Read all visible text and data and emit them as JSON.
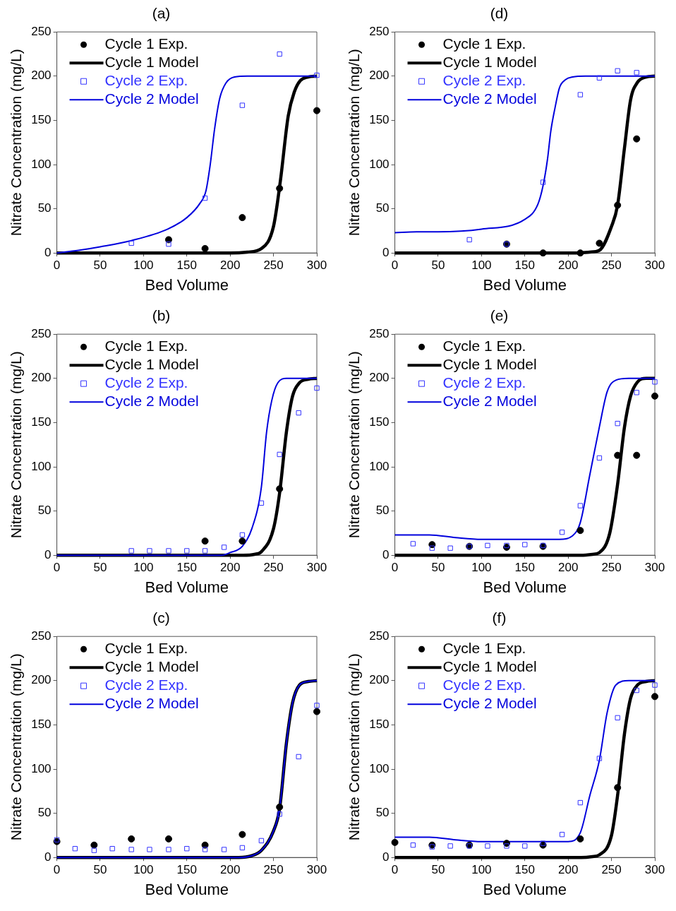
{
  "chart_data": [
    {
      "type": "line",
      "title": "(a)",
      "xlabel": "Bed Volume",
      "ylabel": "Nitrate Concentration (mg/L)",
      "xlim": [
        0,
        300
      ],
      "xticks": [
        0,
        50,
        100,
        150,
        200,
        250,
        300
      ],
      "ylim": [
        0,
        250
      ],
      "yticks": [
        0,
        50,
        100,
        150,
        200,
        250
      ],
      "legend": "top left",
      "line_style": "solid",
      "series": [
        {
          "name": "Cycle 1 Exp.",
          "type": "scatter",
          "marker": "circle",
          "color": "#000000",
          "x": [
            129,
            171,
            214,
            257,
            300
          ],
          "values": [
            15,
            5,
            40,
            73,
            161
          ]
        },
        {
          "name": "Cycle 1 Model",
          "type": "line",
          "marker": "none",
          "color": "#000000",
          "x": [
            0,
            200,
            220,
            236,
            250,
            258,
            267,
            274,
            281,
            290,
            300
          ],
          "values": [
            0,
            0,
            1,
            5,
            30,
            82,
            155,
            182,
            195,
            199,
            200
          ]
        },
        {
          "name": "Cycle 2 Exp.",
          "type": "scatter",
          "marker": "square",
          "color": "#3333ff",
          "x": [
            86,
            129,
            171,
            214,
            257,
            300
          ],
          "values": [
            11,
            10,
            62,
            167,
            225,
            201
          ]
        },
        {
          "name": "Cycle 2 Model",
          "type": "line",
          "marker": "none",
          "color": "#0000dd",
          "x": [
            0,
            25,
            50,
            86,
            128,
            150,
            165,
            172,
            177,
            182,
            188,
            195,
            205,
            220,
            300
          ],
          "values": [
            0,
            3,
            7,
            14,
            27,
            40,
            56,
            70,
            100,
            140,
            175,
            192,
            199,
            200,
            200
          ]
        }
      ]
    },
    {
      "type": "line",
      "title": "(d)",
      "xlabel": "Bed Volume",
      "ylabel": "Nitrate Concentration (mg/L)",
      "xlim": [
        0,
        300
      ],
      "xticks": [
        0,
        50,
        100,
        150,
        200,
        250,
        300
      ],
      "ylim": [
        0,
        250
      ],
      "yticks": [
        0,
        50,
        100,
        150,
        200,
        250
      ],
      "legend": "top left",
      "line_style": "solid",
      "series": [
        {
          "name": "Cycle 1 Exp.",
          "type": "scatter",
          "marker": "circle",
          "color": "#000000",
          "x": [
            129,
            171,
            214,
            236,
            257,
            279
          ],
          "values": [
            10,
            0,
            0,
            11,
            54,
            129
          ]
        },
        {
          "name": "Cycle 1 Model",
          "type": "line",
          "marker": "none",
          "color": "#000000",
          "x": [
            0,
            210,
            225,
            236,
            250,
            257,
            265,
            272,
            280,
            290,
            300
          ],
          "values": [
            0,
            0,
            1,
            3,
            30,
            54,
            119,
            173,
            193,
            199,
            200
          ]
        },
        {
          "name": "Cycle 2 Exp.",
          "type": "scatter",
          "marker": "square",
          "color": "#3333ff",
          "x": [
            86,
            129,
            171,
            214,
            236,
            257,
            279
          ],
          "values": [
            15,
            10,
            80,
            179,
            198,
            206,
            204
          ]
        },
        {
          "name": "Cycle 2 Model",
          "type": "line",
          "marker": "none",
          "color": "#0000dd",
          "x": [
            0,
            25,
            50,
            100,
            150,
            165,
            171,
            176,
            180,
            185,
            190,
            197,
            205,
            220,
            300
          ],
          "values": [
            23,
            24,
            24,
            27,
            38,
            55,
            76,
            105,
            138,
            165,
            187,
            196,
            199,
            200,
            200
          ]
        }
      ]
    },
    {
      "type": "line",
      "title": "(b)",
      "xlabel": "Bed Volume",
      "ylabel": "Nitrate Concentration (mg/L)",
      "xlim": [
        0,
        300
      ],
      "xticks": [
        0,
        50,
        100,
        150,
        200,
        250,
        300
      ],
      "ylim": [
        0,
        250
      ],
      "yticks": [
        0,
        50,
        100,
        150,
        200,
        250
      ],
      "legend": "top left",
      "line_style": "solid",
      "series": [
        {
          "name": "Cycle 1 Exp.",
          "type": "scatter",
          "marker": "circle",
          "color": "#000000",
          "x": [
            171,
            214,
            257
          ],
          "values": [
            16,
            16,
            75
          ]
        },
        {
          "name": "Cycle 1 Model",
          "type": "line",
          "marker": "none",
          "color": "#000000",
          "x": [
            0,
            215,
            228,
            236,
            250,
            257,
            265,
            272,
            280,
            290,
            300
          ],
          "values": [
            0,
            0,
            1,
            4,
            30,
            70,
            140,
            180,
            195,
            199,
            200
          ]
        },
        {
          "name": "Cycle 2 Exp.",
          "type": "scatter",
          "marker": "square",
          "color": "#3333ff",
          "x": [
            86,
            107,
            129,
            150,
            171,
            193,
            214,
            236,
            257,
            279,
            300
          ],
          "values": [
            5,
            5,
            5,
            5,
            5,
            9,
            23,
            59,
            114,
            161,
            189
          ]
        },
        {
          "name": "Cycle 2 Model",
          "type": "line",
          "marker": "none",
          "color": "#0000dd",
          "x": [
            0,
            190,
            200,
            214,
            225,
            236,
            242,
            248,
            255,
            265,
            300
          ],
          "values": [
            0,
            0,
            3,
            10,
            30,
            77,
            139,
            175,
            195,
            200,
            200
          ]
        }
      ]
    },
    {
      "type": "line",
      "title": "(e)",
      "xlabel": "Bed Volume",
      "ylabel": "Nitrate Concentration (mg/L)",
      "xlim": [
        0,
        300
      ],
      "xticks": [
        0,
        50,
        100,
        150,
        200,
        250,
        300
      ],
      "ylim": [
        0,
        250
      ],
      "yticks": [
        0,
        50,
        100,
        150,
        200,
        250
      ],
      "legend": "top left",
      "line_style": "solid",
      "series": [
        {
          "name": "Cycle 1 Exp.",
          "type": "scatter",
          "marker": "circle",
          "color": "#000000",
          "x": [
            43,
            86,
            129,
            171,
            214,
            257,
            279,
            300
          ],
          "values": [
            12,
            10,
            9,
            10,
            28,
            113,
            113,
            180
          ]
        },
        {
          "name": "Cycle 1 Model",
          "type": "line",
          "marker": "none",
          "color": "#000000",
          "x": [
            0,
            215,
            228,
            236,
            248,
            257,
            265,
            272,
            280,
            290,
            300
          ],
          "values": [
            0,
            0,
            1,
            3,
            25,
            80,
            145,
            180,
            196,
            200,
            200
          ]
        },
        {
          "name": "Cycle 2 Exp.",
          "type": "scatter",
          "marker": "square",
          "color": "#3333ff",
          "x": [
            21,
            43,
            64,
            86,
            107,
            129,
            150,
            171,
            193,
            214,
            236,
            257,
            279,
            300
          ],
          "values": [
            13,
            8,
            8,
            10,
            11,
            11,
            12,
            11,
            26,
            56,
            110,
            149,
            184,
            196
          ]
        },
        {
          "name": "Cycle 2 Model",
          "type": "line",
          "marker": "none",
          "color": "#0000dd",
          "x": [
            0,
            40,
            70,
            100,
            150,
            190,
            205,
            214,
            225,
            236,
            245,
            255,
            270,
            300
          ],
          "values": [
            23,
            23,
            20,
            18,
            18,
            18,
            22,
            37,
            91,
            145,
            185,
            198,
            200,
            200
          ]
        }
      ]
    },
    {
      "type": "line",
      "title": "(c)",
      "xlabel": "Bed Volume",
      "ylabel": "Nitrate Concentration (mg/L)",
      "xlim": [
        0,
        300
      ],
      "xticks": [
        0,
        50,
        100,
        150,
        200,
        250,
        300
      ],
      "ylim": [
        0,
        250
      ],
      "yticks": [
        0,
        50,
        100,
        150,
        200,
        250
      ],
      "legend": "top left",
      "line_style": "solid",
      "series": [
        {
          "name": "Cycle 1 Exp.",
          "type": "scatter",
          "marker": "circle",
          "color": "#000000",
          "x": [
            0,
            43,
            86,
            129,
            171,
            214,
            257,
            300
          ],
          "values": [
            18,
            14,
            21,
            21,
            14,
            26,
            57,
            165
          ]
        },
        {
          "name": "Cycle 1 Model",
          "type": "line",
          "marker": "none",
          "color": "#000000",
          "x": [
            0,
            210,
            225,
            236,
            250,
            257,
            265,
            272,
            280,
            290,
            300
          ],
          "values": [
            0,
            0,
            2,
            8,
            30,
            55,
            130,
            175,
            195,
            199,
            200
          ]
        },
        {
          "name": "Cycle 2 Exp.",
          "type": "scatter",
          "marker": "square",
          "color": "#3333ff",
          "x": [
            0,
            21,
            43,
            64,
            86,
            107,
            129,
            150,
            171,
            193,
            214,
            236,
            257,
            279,
            300
          ],
          "values": [
            20,
            10,
            8,
            10,
            9,
            9,
            9,
            10,
            9,
            9,
            11,
            19,
            49,
            114,
            172
          ]
        },
        {
          "name": "Cycle 2 Model",
          "type": "line",
          "marker": "none",
          "color": "#0000dd",
          "x": [
            0,
            210,
            225,
            236,
            250,
            257,
            265,
            272,
            280,
            290,
            300
          ],
          "values": [
            0,
            0,
            2,
            8,
            30,
            55,
            130,
            175,
            195,
            199,
            200
          ]
        }
      ]
    },
    {
      "type": "line",
      "title": "(f)",
      "xlabel": "Bed Volume",
      "ylabel": "Nitrate Concentration (mg/L)",
      "xlim": [
        0,
        300
      ],
      "xticks": [
        0,
        50,
        100,
        150,
        200,
        250,
        300
      ],
      "ylim": [
        0,
        250
      ],
      "yticks": [
        0,
        50,
        100,
        150,
        200,
        250
      ],
      "legend": "top left",
      "line_style": "solid",
      "series": [
        {
          "name": "Cycle 1 Exp.",
          "type": "scatter",
          "marker": "circle",
          "color": "#000000",
          "x": [
            0,
            43,
            86,
            129,
            171,
            214,
            257,
            300
          ],
          "values": [
            17,
            14,
            14,
            16,
            14,
            21,
            79,
            182
          ]
        },
        {
          "name": "Cycle 1 Model",
          "type": "line",
          "marker": "none",
          "color": "#000000",
          "x": [
            0,
            215,
            228,
            236,
            250,
            257,
            265,
            272,
            280,
            290,
            300
          ],
          "values": [
            0,
            0,
            1,
            3,
            25,
            70,
            140,
            180,
            195,
            199,
            200
          ]
        },
        {
          "name": "Cycle 2 Exp.",
          "type": "scatter",
          "marker": "square",
          "color": "#3333ff",
          "x": [
            21,
            43,
            64,
            86,
            107,
            129,
            150,
            171,
            193,
            214,
            236,
            257,
            279,
            300
          ],
          "values": [
            14,
            12,
            13,
            13,
            13,
            13,
            13,
            16,
            26,
            62,
            112,
            158,
            189,
            195
          ]
        },
        {
          "name": "Cycle 2 Model",
          "type": "line",
          "marker": "none",
          "color": "#0000dd",
          "x": [
            0,
            40,
            70,
            100,
            150,
            200,
            214,
            225,
            236,
            245,
            255,
            270,
            300
          ],
          "values": [
            23,
            23,
            20,
            18,
            18,
            18,
            28,
            70,
            110,
            164,
            195,
            200,
            200
          ]
        }
      ]
    }
  ]
}
